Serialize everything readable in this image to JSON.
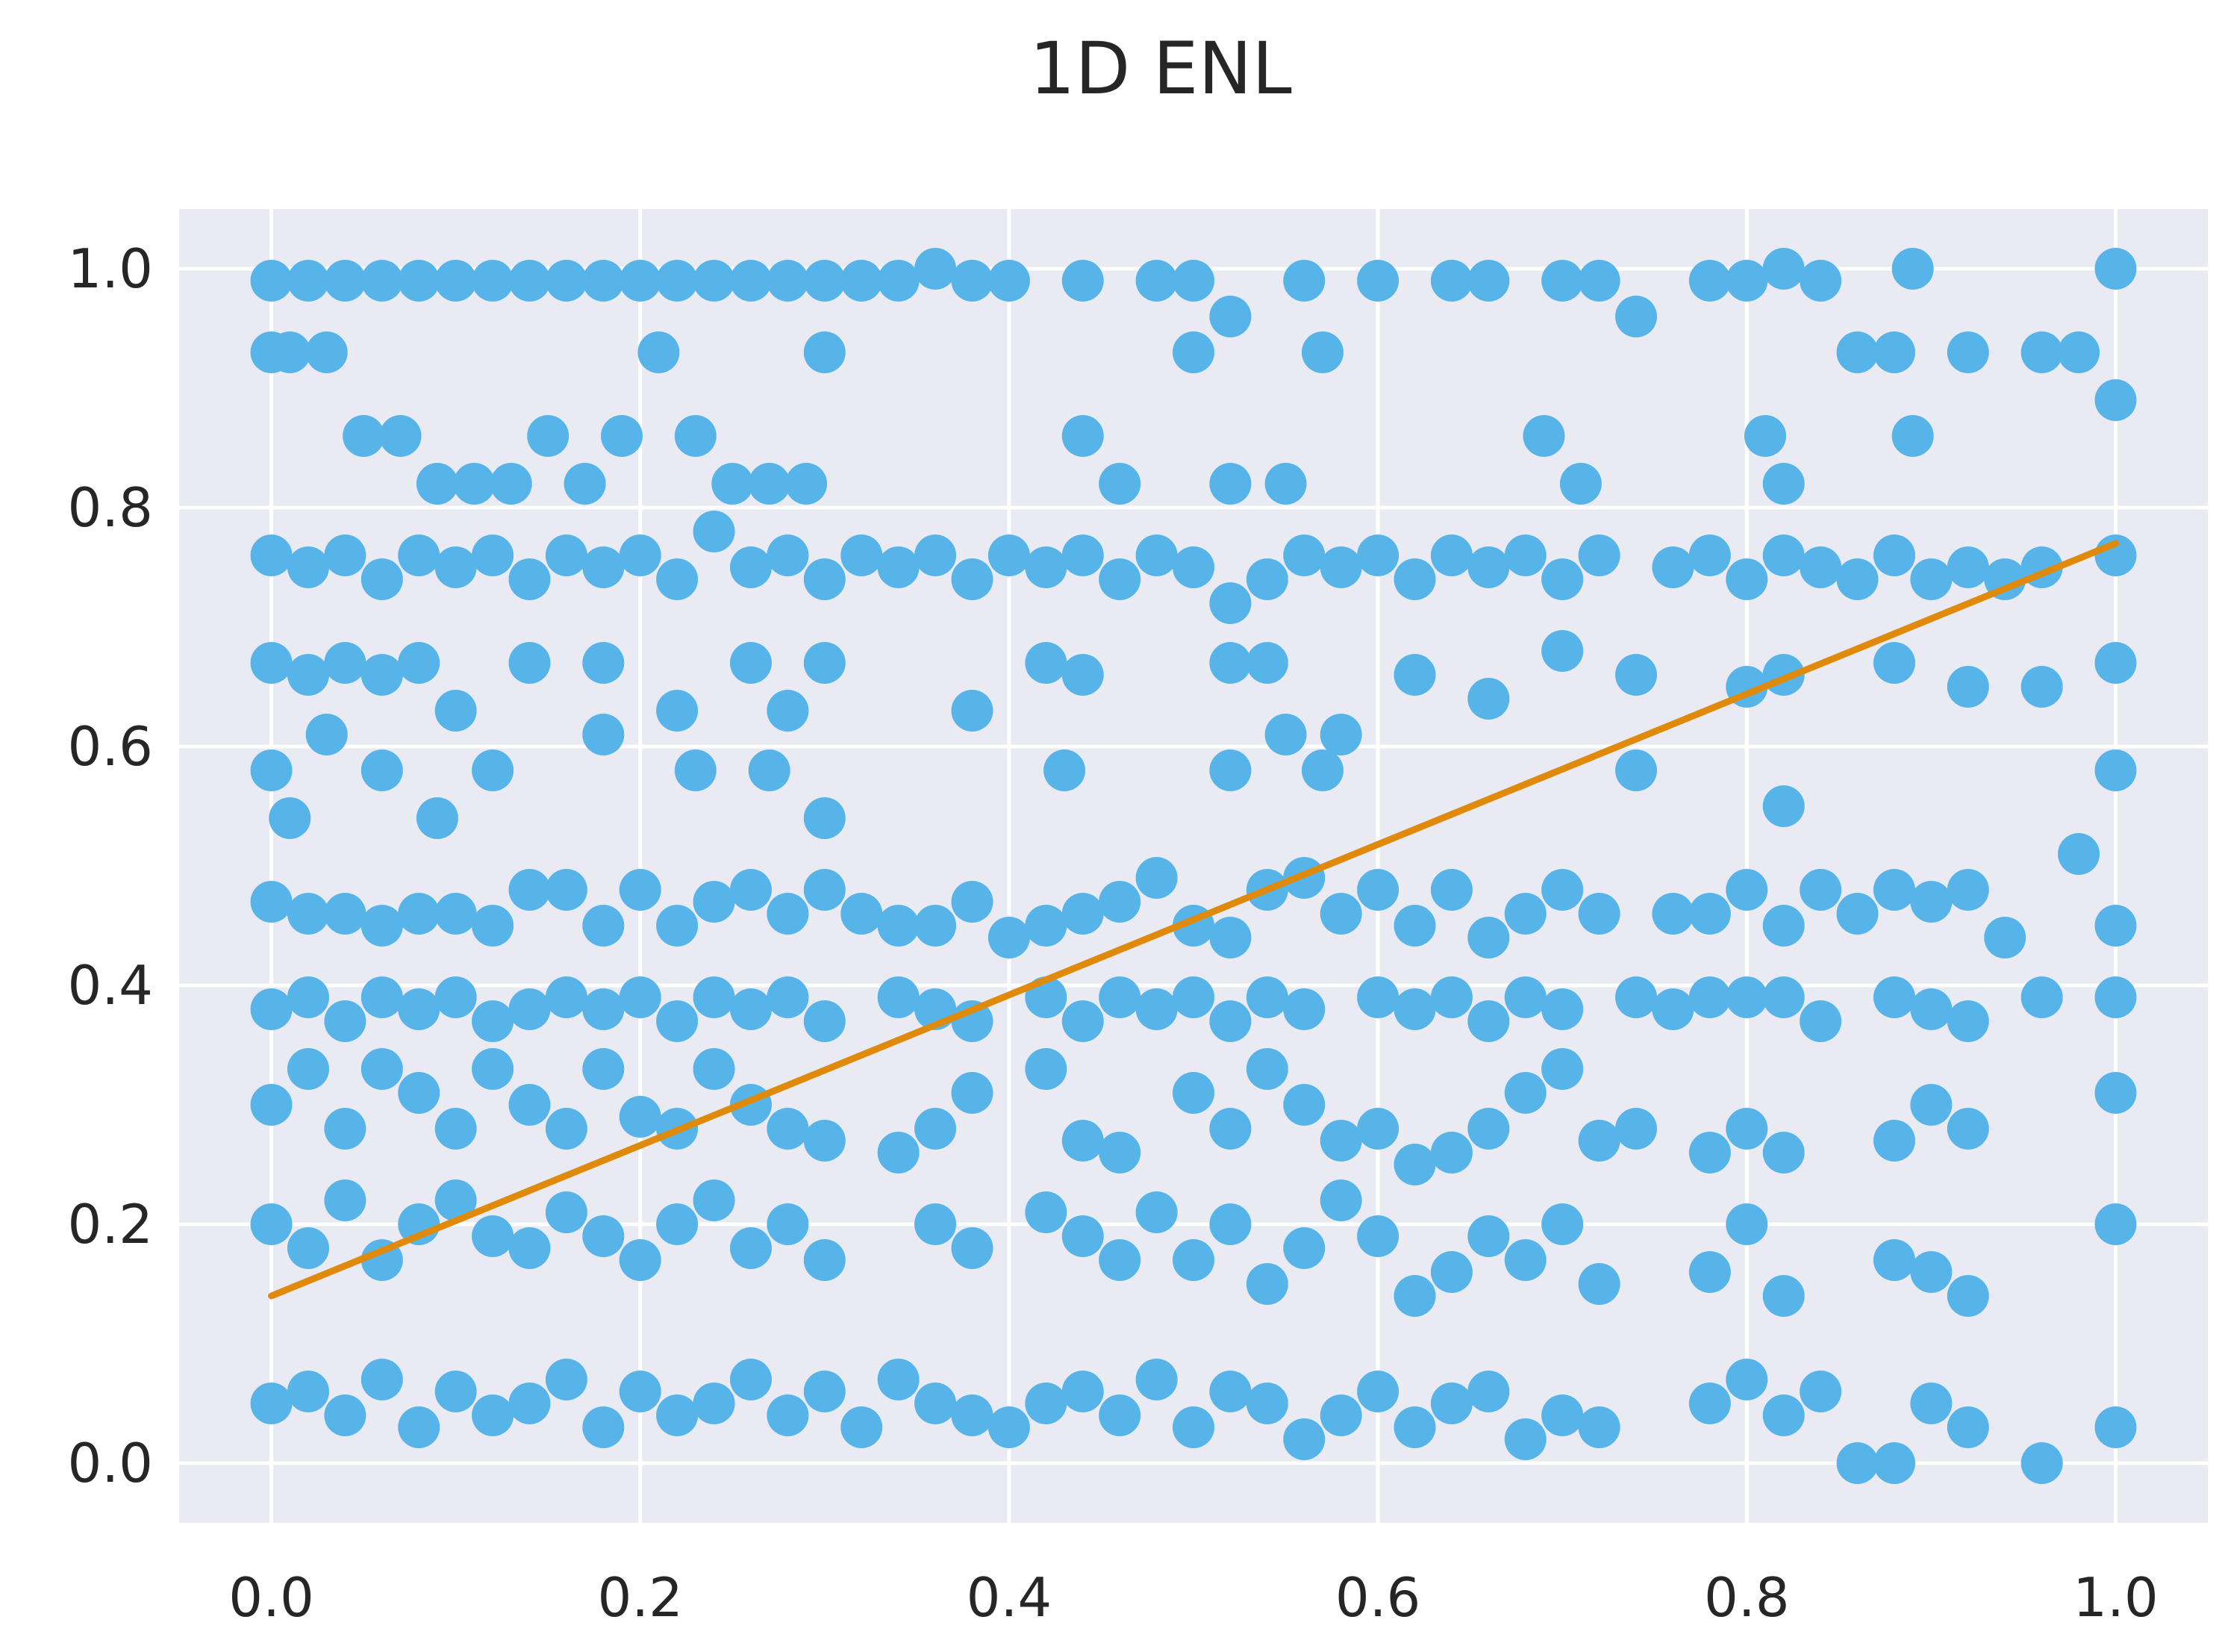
{
  "chart_data": {
    "type": "scatter",
    "title": "1D ENL",
    "xlabel": "",
    "ylabel": "",
    "xlim": [
      -0.05,
      1.05
    ],
    "ylim": [
      -0.05,
      1.05
    ],
    "x_ticks": [
      0.0,
      0.2,
      0.4,
      0.6,
      0.8,
      1.0
    ],
    "y_ticks": [
      0.0,
      0.2,
      0.4,
      0.6,
      0.8,
      1.0
    ],
    "x_tick_labels": [
      "0.0",
      "0.2",
      "0.4",
      "0.6",
      "0.8",
      "1.0"
    ],
    "y_tick_labels": [
      "0.0",
      "0.2",
      "0.4",
      "0.6",
      "0.8",
      "1.0"
    ],
    "grid": true,
    "background_color": "#eaeaf2",
    "point_color": "#56b4e9",
    "line_color": "#e08a0b",
    "fit_line": {
      "x": [
        0.0,
        1.0
      ],
      "y": [
        0.14,
        0.77
      ]
    },
    "points_x": [
      0.0,
      0.02,
      0.04,
      0.06,
      0.08,
      0.1,
      0.12,
      0.14,
      0.16,
      0.18,
      0.2,
      0.22,
      0.24,
      0.26,
      0.28,
      0.3,
      0.32,
      0.34,
      0.36,
      0.38,
      0.4,
      0.44,
      0.48,
      0.5,
      0.52,
      0.56,
      0.6,
      0.64,
      0.66,
      0.7,
      0.72,
      0.74,
      0.78,
      0.8,
      0.82,
      0.84,
      0.86,
      0.88,
      0.89,
      0.92,
      0.96,
      0.98,
      1.0,
      0.0,
      0.01,
      0.03,
      0.05,
      0.07,
      0.09,
      0.11,
      0.13,
      0.15,
      0.17,
      0.19,
      0.21,
      0.23,
      0.25,
      0.27,
      0.29,
      0.3,
      0.44,
      0.46,
      0.5,
      0.52,
      0.55,
      0.57,
      0.69,
      0.71,
      0.81,
      0.82,
      0.89,
      1.0,
      0.0,
      0.02,
      0.04,
      0.06,
      0.08,
      0.1,
      0.12,
      0.14,
      0.16,
      0.18,
      0.2,
      0.22,
      0.24,
      0.26,
      0.28,
      0.3,
      0.32,
      0.34,
      0.36,
      0.38,
      0.4,
      0.42,
      0.44,
      0.46,
      0.48,
      0.5,
      0.52,
      0.54,
      0.56,
      0.58,
      0.6,
      0.62,
      0.64,
      0.66,
      0.68,
      0.7,
      0.72,
      0.76,
      0.78,
      0.8,
      0.82,
      0.84,
      0.86,
      0.88,
      0.9,
      0.92,
      0.94,
      0.96,
      1.0,
      0.0,
      0.02,
      0.04,
      0.06,
      0.08,
      0.1,
      0.14,
      0.18,
      0.22,
      0.26,
      0.28,
      0.3,
      0.38,
      0.42,
      0.44,
      0.52,
      0.54,
      0.58,
      0.62,
      0.66,
      0.7,
      0.74,
      0.8,
      0.82,
      0.88,
      0.92,
      0.96,
      1.0,
      0.0,
      0.01,
      0.03,
      0.06,
      0.09,
      0.12,
      0.18,
      0.23,
      0.27,
      0.3,
      0.43,
      0.52,
      0.55,
      0.57,
      0.74,
      0.82,
      1.0,
      0.0,
      0.02,
      0.04,
      0.06,
      0.08,
      0.1,
      0.12,
      0.14,
      0.16,
      0.18,
      0.2,
      0.22,
      0.24,
      0.26,
      0.28,
      0.3,
      0.32,
      0.34,
      0.36,
      0.38,
      0.4,
      0.42,
      0.44,
      0.46,
      0.48,
      0.5,
      0.52,
      0.54,
      0.56,
      0.58,
      0.6,
      0.62,
      0.64,
      0.66,
      0.68,
      0.7,
      0.72,
      0.76,
      0.78,
      0.8,
      0.82,
      0.84,
      0.86,
      0.88,
      0.9,
      0.92,
      0.94,
      0.98,
      1.0,
      0.0,
      0.02,
      0.04,
      0.06,
      0.08,
      0.1,
      0.12,
      0.14,
      0.16,
      0.18,
      0.2,
      0.22,
      0.24,
      0.26,
      0.28,
      0.3,
      0.34,
      0.36,
      0.38,
      0.42,
      0.44,
      0.46,
      0.48,
      0.5,
      0.52,
      0.54,
      0.56,
      0.6,
      0.62,
      0.64,
      0.66,
      0.68,
      0.7,
      0.74,
      0.76,
      0.78,
      0.8,
      0.82,
      0.84,
      0.88,
      0.9,
      0.92,
      0.96,
      1.0,
      0.0,
      0.02,
      0.04,
      0.06,
      0.08,
      0.1,
      0.12,
      0.14,
      0.16,
      0.18,
      0.2,
      0.22,
      0.24,
      0.26,
      0.28,
      0.3,
      0.34,
      0.36,
      0.38,
      0.42,
      0.44,
      0.46,
      0.5,
      0.52,
      0.54,
      0.56,
      0.58,
      0.6,
      0.62,
      0.64,
      0.66,
      0.68,
      0.7,
      0.72,
      0.74,
      0.78,
      0.8,
      0.82,
      0.88,
      0.9,
      0.92,
      1.0,
      0.0,
      0.02,
      0.04,
      0.06,
      0.08,
      0.1,
      0.12,
      0.14,
      0.16,
      0.18,
      0.2,
      0.22,
      0.24,
      0.26,
      0.28,
      0.3,
      0.36,
      0.38,
      0.42,
      0.44,
      0.46,
      0.48,
      0.5,
      0.52,
      0.54,
      0.56,
      0.58,
      0.6,
      0.62,
      0.64,
      0.66,
      0.68,
      0.7,
      0.72,
      0.78,
      0.8,
      0.82,
      0.88,
      0.9,
      0.92,
      1.0,
      0.0,
      0.02,
      0.04,
      0.06,
      0.08,
      0.1,
      0.12,
      0.14,
      0.16,
      0.18,
      0.2,
      0.22,
      0.24,
      0.26,
      0.28,
      0.3,
      0.32,
      0.34,
      0.36,
      0.38,
      0.4,
      0.42,
      0.44,
      0.46,
      0.48,
      0.5,
      0.52,
      0.54,
      0.56,
      0.58,
      0.6,
      0.62,
      0.64,
      0.66,
      0.68,
      0.7,
      0.72,
      0.78,
      0.8,
      0.82,
      0.84,
      0.86,
      0.88,
      0.9,
      0.92,
      0.96,
      1.0
    ],
    "points_y": [
      0.99,
      0.99,
      0.99,
      0.99,
      0.99,
      0.99,
      0.99,
      0.99,
      0.99,
      0.99,
      0.99,
      0.99,
      0.99,
      0.99,
      0.99,
      0.99,
      0.99,
      0.99,
      1.0,
      0.99,
      0.99,
      0.99,
      0.99,
      0.99,
      0.96,
      0.99,
      0.99,
      0.99,
      0.99,
      0.99,
      0.99,
      0.96,
      0.99,
      0.99,
      1.0,
      0.99,
      0.93,
      0.93,
      1.0,
      0.93,
      0.93,
      0.93,
      1.0,
      0.93,
      0.93,
      0.93,
      0.86,
      0.86,
      0.82,
      0.82,
      0.82,
      0.86,
      0.82,
      0.86,
      0.93,
      0.86,
      0.82,
      0.82,
      0.82,
      0.93,
      0.86,
      0.82,
      0.93,
      0.82,
      0.82,
      0.93,
      0.86,
      0.82,
      0.86,
      0.82,
      0.86,
      0.89,
      0.76,
      0.75,
      0.76,
      0.74,
      0.76,
      0.75,
      0.76,
      0.74,
      0.76,
      0.75,
      0.76,
      0.74,
      0.78,
      0.75,
      0.76,
      0.74,
      0.76,
      0.75,
      0.76,
      0.74,
      0.76,
      0.75,
      0.76,
      0.74,
      0.76,
      0.75,
      0.72,
      0.74,
      0.76,
      0.75,
      0.76,
      0.74,
      0.76,
      0.75,
      0.76,
      0.74,
      0.76,
      0.75,
      0.76,
      0.74,
      0.76,
      0.75,
      0.74,
      0.76,
      0.74,
      0.75,
      0.74,
      0.75,
      0.76,
      0.67,
      0.66,
      0.67,
      0.66,
      0.67,
      0.63,
      0.67,
      0.67,
      0.63,
      0.67,
      0.63,
      0.67,
      0.63,
      0.67,
      0.66,
      0.67,
      0.67,
      0.61,
      0.66,
      0.64,
      0.68,
      0.66,
      0.65,
      0.66,
      0.67,
      0.65,
      0.65,
      0.67,
      0.58,
      0.54,
      0.61,
      0.58,
      0.54,
      0.58,
      0.61,
      0.58,
      0.58,
      0.54,
      0.58,
      0.58,
      0.61,
      0.58,
      0.58,
      0.55,
      0.58,
      0.47,
      0.46,
      0.46,
      0.45,
      0.46,
      0.46,
      0.45,
      0.48,
      0.48,
      0.45,
      0.48,
      0.45,
      0.47,
      0.48,
      0.46,
      0.48,
      0.46,
      0.45,
      0.45,
      0.47,
      0.44,
      0.45,
      0.46,
      0.47,
      0.49,
      0.45,
      0.44,
      0.48,
      0.49,
      0.46,
      0.48,
      0.45,
      0.48,
      0.44,
      0.46,
      0.48,
      0.46,
      0.46,
      0.46,
      0.48,
      0.45,
      0.48,
      0.46,
      0.48,
      0.47,
      0.48,
      0.44,
      0.51,
      0.45,
      0.38,
      0.39,
      0.37,
      0.39,
      0.38,
      0.39,
      0.37,
      0.38,
      0.39,
      0.38,
      0.39,
      0.37,
      0.39,
      0.38,
      0.39,
      0.37,
      0.39,
      0.38,
      0.37,
      0.39,
      0.37,
      0.39,
      0.38,
      0.39,
      0.37,
      0.39,
      0.38,
      0.39,
      0.38,
      0.39,
      0.37,
      0.39,
      0.38,
      0.39,
      0.38,
      0.39,
      0.39,
      0.39,
      0.37,
      0.39,
      0.38,
      0.37,
      0.39,
      0.39,
      0.3,
      0.33,
      0.28,
      0.33,
      0.31,
      0.28,
      0.33,
      0.3,
      0.28,
      0.33,
      0.29,
      0.28,
      0.33,
      0.3,
      0.28,
      0.27,
      0.26,
      0.28,
      0.31,
      0.33,
      0.27,
      0.26,
      0.31,
      0.28,
      0.33,
      0.3,
      0.27,
      0.28,
      0.25,
      0.26,
      0.28,
      0.31,
      0.33,
      0.27,
      0.28,
      0.26,
      0.28,
      0.26,
      0.27,
      0.3,
      0.28,
      0.31,
      0.2,
      0.18,
      0.22,
      0.17,
      0.2,
      0.22,
      0.19,
      0.18,
      0.21,
      0.19,
      0.17,
      0.2,
      0.22,
      0.18,
      0.2,
      0.17,
      0.2,
      0.18,
      0.21,
      0.19,
      0.17,
      0.21,
      0.17,
      0.2,
      0.15,
      0.18,
      0.22,
      0.19,
      0.14,
      0.16,
      0.19,
      0.17,
      0.2,
      0.15,
      0.16,
      0.2,
      0.14,
      0.17,
      0.16,
      0.14,
      0.2,
      0.05,
      0.06,
      0.04,
      0.07,
      0.03,
      0.06,
      0.04,
      0.05,
      0.07,
      0.03,
      0.06,
      0.04,
      0.05,
      0.07,
      0.04,
      0.06,
      0.03,
      0.07,
      0.05,
      0.04,
      0.03,
      0.05,
      0.06,
      0.04,
      0.07,
      0.03,
      0.06,
      0.05,
      0.02,
      0.04,
      0.06,
      0.03,
      0.05,
      0.06,
      0.02,
      0.04,
      0.03,
      0.05,
      0.07,
      0.04,
      0.06,
      0.0,
      0.0,
      0.05,
      0.03,
      0.0,
      0.03
    ]
  }
}
